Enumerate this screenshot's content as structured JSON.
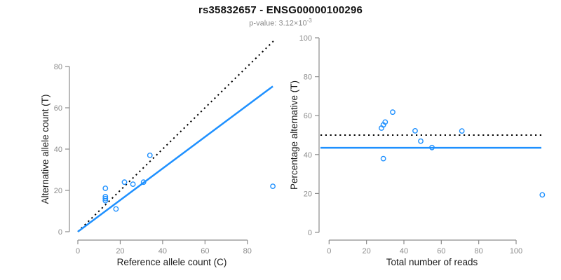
{
  "header": {
    "title": "rs35832657 - ENSG00000100296",
    "subtitle_main": "p-value: 3.12×10",
    "subtitle_exponent": "-3"
  },
  "colors": {
    "accent_blue": "#1E90FF",
    "identity_black": "#000000",
    "axis_gray": "#8C8C8C",
    "tick_label_gray": "#8C8C8C",
    "axis_title_color": "#1A1A1A"
  },
  "chart_data": [
    {
      "type": "scatter",
      "panel": "left",
      "xlabel": "Reference allele count (C)",
      "ylabel": "Alternative allele count (T)",
      "xticks": [
        0,
        20,
        40,
        60,
        80
      ],
      "yticks": [
        0,
        20,
        40,
        60,
        80
      ],
      "xlim": [
        0,
        93
      ],
      "ylim": [
        0,
        93
      ],
      "grid": false,
      "points": [
        [
          13,
          21
        ],
        [
          13,
          17
        ],
        [
          13,
          16
        ],
        [
          13,
          15
        ],
        [
          18,
          11
        ],
        [
          22,
          24
        ],
        [
          26,
          23
        ],
        [
          31,
          24
        ],
        [
          34,
          37
        ],
        [
          92,
          22
        ]
      ],
      "lines": [
        {
          "name": "identity-line",
          "style": "dotted",
          "color": "#000000",
          "from": [
            0,
            0
          ],
          "to": [
            93,
            93
          ]
        },
        {
          "name": "fit-line",
          "style": "solid",
          "color": "#1E90FF",
          "from": [
            0,
            0
          ],
          "to": [
            92,
            70.4
          ],
          "slope": 0.765
        }
      ]
    },
    {
      "type": "scatter",
      "panel": "right",
      "xlabel": "Total number of reads",
      "ylabel": "Percentage alternative (T)",
      "xticks": [
        0,
        20,
        40,
        60,
        80,
        100
      ],
      "yticks": [
        0,
        20,
        40,
        60,
        80,
        100
      ],
      "xlim": [
        0,
        115
      ],
      "ylim": [
        0,
        100
      ],
      "grid": false,
      "points": [
        [
          34,
          61.8
        ],
        [
          30,
          56.7
        ],
        [
          29,
          55.2
        ],
        [
          28,
          53.6
        ],
        [
          29,
          37.9
        ],
        [
          46,
          52.2
        ],
        [
          49,
          46.9
        ],
        [
          55,
          43.6
        ],
        [
          71,
          52.1
        ],
        [
          114,
          19.3
        ]
      ],
      "lines": [
        {
          "name": "expected-50pct-line",
          "style": "dotted",
          "color": "#000000",
          "hline": 50
        },
        {
          "name": "mean-percentage-line",
          "style": "solid",
          "color": "#1E90FF",
          "hline": 43.5
        }
      ]
    }
  ]
}
